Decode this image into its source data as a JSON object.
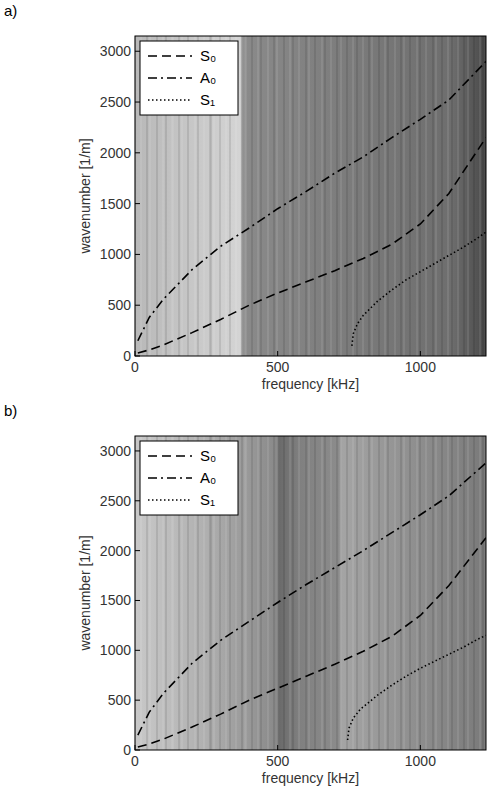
{
  "chart_data": [
    {
      "type": "line",
      "title": "a)",
      "x_label": "frequency [kHz]",
      "y_label": "wavenumber [1/m]",
      "xlim": [
        0,
        1230
      ],
      "ylim": [
        0,
        3150
      ],
      "xticks": [
        0,
        500,
        1000
      ],
      "yticks": [
        0,
        500,
        1000,
        1500,
        2000,
        2500,
        3000
      ],
      "legend": "upper left",
      "grid": false,
      "series": [
        {
          "name": "S₀",
          "color": "#000000",
          "line_style": "dashed",
          "x": [
            10,
            50,
            100,
            200,
            300,
            400,
            500,
            600,
            700,
            800,
            900,
            1000,
            1100,
            1230
          ],
          "values": [
            30,
            60,
            110,
            230,
            360,
            500,
            620,
            730,
            840,
            960,
            1100,
            1300,
            1600,
            2150
          ]
        },
        {
          "name": "A₀",
          "color": "#000000",
          "line_style": "dashdot",
          "x": [
            10,
            50,
            100,
            200,
            300,
            400,
            500,
            600,
            700,
            800,
            900,
            1000,
            1100,
            1230
          ],
          "values": [
            150,
            380,
            560,
            850,
            1080,
            1260,
            1450,
            1620,
            1800,
            1960,
            2150,
            2330,
            2520,
            2900
          ]
        },
        {
          "name": "S₁",
          "color": "#000000",
          "line_style": "dotted",
          "x": [
            760,
            765,
            780,
            800,
            850,
            900,
            950,
            1000,
            1050,
            1100,
            1150,
            1200,
            1230
          ],
          "values": [
            100,
            220,
            320,
            400,
            540,
            650,
            750,
            830,
            910,
            990,
            1070,
            1160,
            1220
          ]
        }
      ]
    },
    {
      "type": "line",
      "title": "b)",
      "x_label": "frequency [kHz]",
      "y_label": "wavenumber [1/m]",
      "xlim": [
        0,
        1230
      ],
      "ylim": [
        0,
        3150
      ],
      "xticks": [
        0,
        500,
        1000
      ],
      "yticks": [
        0,
        500,
        1000,
        1500,
        2000,
        2500,
        3000
      ],
      "legend": "upper left",
      "grid": false,
      "series": [
        {
          "name": "S₀",
          "color": "#000000",
          "line_style": "dashed",
          "x": [
            10,
            50,
            100,
            200,
            300,
            400,
            500,
            600,
            700,
            800,
            900,
            1000,
            1100,
            1230
          ],
          "values": [
            30,
            60,
            110,
            230,
            360,
            500,
            620,
            740,
            860,
            990,
            1140,
            1350,
            1650,
            2130
          ]
        },
        {
          "name": "A₀",
          "color": "#000000",
          "line_style": "dashdot",
          "x": [
            10,
            50,
            100,
            200,
            300,
            400,
            500,
            600,
            700,
            800,
            900,
            1000,
            1100,
            1230
          ],
          "values": [
            150,
            380,
            570,
            870,
            1100,
            1290,
            1480,
            1660,
            1830,
            2000,
            2180,
            2360,
            2550,
            2880
          ]
        },
        {
          "name": "S₁",
          "color": "#000000",
          "line_style": "dotted",
          "x": [
            745,
            750,
            765,
            790,
            850,
            900,
            950,
            1000,
            1050,
            1100,
            1150,
            1200,
            1230
          ],
          "values": [
            100,
            220,
            320,
            410,
            550,
            650,
            740,
            820,
            890,
            960,
            1030,
            1110,
            1150
          ]
        }
      ]
    }
  ]
}
